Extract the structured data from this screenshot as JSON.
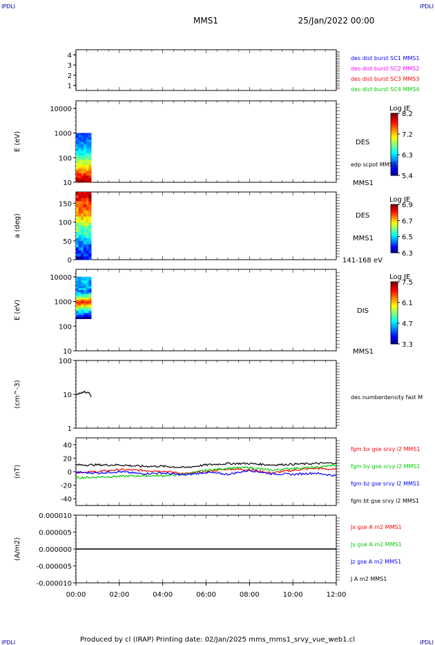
{
  "header": {
    "corner_labels": [
      "IPDLI",
      "IPDLI",
      "IPDLI",
      "IPDLI"
    ],
    "spacecraft": "MMS1",
    "date": "25/Jan/2022 00:00"
  },
  "footer": "Produced by cl (IRAP)   Printing date: 02/Jan/2025   mms_mms1_srvy_vue_web1.cl",
  "colors": {
    "blue": "#0000ff",
    "magenta": "#ff00ff",
    "red": "#ff0000",
    "green": "#00cc00",
    "black": "#000000"
  },
  "chart_data": [
    {
      "type": "heatmap",
      "panel": "burst availability",
      "yticks": [
        "4",
        "3",
        "2",
        "1"
      ],
      "ylim": [
        0.5,
        4.5
      ],
      "legend": [
        {
          "text": "des dist burst SC1 MMS1",
          "color": "#0000ff"
        },
        {
          "text": "des dist burst SC2 MMS2",
          "color": "#ff00ff"
        },
        {
          "text": "des dist burst SC3 MMS3",
          "color": "#ff0000"
        },
        {
          "text": "des dist burst SC4 MMS4",
          "color": "#00cc00"
        }
      ]
    },
    {
      "type": "heatmap",
      "panel": "DES energy spectrogram",
      "ylabel": "E (eV)",
      "yscale": "log",
      "ylim": [
        10,
        20000
      ],
      "yticks": [
        "10000",
        "1000",
        "100",
        "10"
      ],
      "ytick_values": [
        10000,
        1000,
        100,
        10
      ],
      "data_xrange": [
        0.0,
        0.7
      ],
      "data_yrange": [
        10,
        1000
      ],
      "right_labels": [
        "DES",
        "edp scpot MMS1",
        "MMS1"
      ],
      "colorbar": {
        "title": "Log JE",
        "ticks": [
          "8.2",
          "7.2",
          "6.3",
          "5.4"
        ]
      }
    },
    {
      "type": "heatmap",
      "panel": "DES pitch angle",
      "ylabel": "a (deg)",
      "ylim": [
        0,
        180
      ],
      "yticks": [
        "150",
        "100",
        "50",
        "0"
      ],
      "ytick_values": [
        150,
        100,
        50,
        0
      ],
      "data_xrange": [
        0.0,
        0.7
      ],
      "right_labels": [
        "DES",
        "MMS1",
        "141-168 eV"
      ],
      "colorbar": {
        "title": "Log JE",
        "ticks": [
          "6.9",
          "6.7",
          "6.5",
          "6.3"
        ]
      }
    },
    {
      "type": "heatmap",
      "panel": "DIS energy spectrogram",
      "ylabel": "E (eV)",
      "yscale": "log",
      "ylim": [
        10,
        20000
      ],
      "yticks": [
        "10000",
        "1000",
        "100",
        "10"
      ],
      "ytick_values": [
        10000,
        1000,
        100,
        10
      ],
      "data_xrange": [
        0.0,
        0.7
      ],
      "data_yrange": [
        200,
        10000
      ],
      "right_labels": [
        "DIS",
        "MMS1"
      ],
      "colorbar": {
        "title": "Log JE",
        "ticks": [
          "7.5",
          "6.1",
          "4.7",
          "3.3"
        ]
      }
    },
    {
      "type": "line",
      "panel": "density",
      "ylabel": "(cm^-3)",
      "yscale": "log",
      "ylim": [
        1,
        100
      ],
      "yticks": [
        "100",
        "10",
        "1"
      ],
      "ytick_values": [
        100,
        10,
        1
      ],
      "series": [
        {
          "name": "des numberdensity fast M",
          "color": "#000000",
          "x": [
            0.0,
            0.1,
            0.2,
            0.3,
            0.4,
            0.5,
            0.6,
            0.7
          ],
          "y": [
            9.5,
            10.5,
            10.8,
            11.2,
            12.0,
            11.0,
            11.8,
            8.2
          ]
        }
      ]
    },
    {
      "type": "line",
      "panel": "magnetic field",
      "ylabel": "(nT)",
      "ylim": [
        -50,
        50
      ],
      "yticks": [
        "40",
        "20",
        "0",
        "-20",
        "-40"
      ],
      "ytick_values": [
        40,
        20,
        0,
        -20,
        -40
      ],
      "series": [
        {
          "name": "fgm bx gse srvy l2 MMS1",
          "color": "#ff0000",
          "x": [
            0,
            1,
            2,
            3,
            4,
            5,
            6,
            7,
            8,
            9,
            10,
            11,
            12
          ],
          "y": [
            -1,
            0,
            3,
            2,
            1,
            -3,
            0,
            4,
            3,
            -2,
            2,
            5,
            3
          ]
        },
        {
          "name": "fgm by gse srvy l2 MMS1",
          "color": "#00cc00",
          "x": [
            0,
            1,
            2,
            3,
            4,
            5,
            6,
            7,
            8,
            9,
            10,
            11,
            12
          ],
          "y": [
            -9,
            -8,
            -7,
            -6,
            -6,
            -4,
            2,
            5,
            6,
            2,
            5,
            6,
            10
          ]
        },
        {
          "name": "fgm bz gse srvy l2 MMS1",
          "color": "#0000ff",
          "x": [
            0,
            1,
            2,
            3,
            4,
            5,
            6,
            7,
            8,
            9,
            10,
            11,
            12
          ],
          "y": [
            -1,
            -2,
            0,
            -3,
            -2,
            -5,
            -1,
            -4,
            2,
            -3,
            -4,
            -2,
            -6
          ]
        },
        {
          "name": "fgm bt gse srvy l2 MMS1",
          "color": "#000000",
          "x": [
            0,
            1,
            2,
            3,
            4,
            5,
            6,
            7,
            8,
            9,
            10,
            11,
            12
          ],
          "y": [
            10,
            10,
            10,
            8,
            8,
            6,
            10,
            12,
            12,
            10,
            11,
            12,
            13
          ]
        }
      ]
    },
    {
      "type": "line",
      "panel": "current density",
      "ylabel": "(A/m2)",
      "ylim": [
        -1e-05,
        1e-05
      ],
      "yticks": [
        "0.000010",
        "0.000005",
        "0.000000",
        "-0.000005",
        "-0.000010"
      ],
      "ytick_values": [
        1e-05,
        5e-06,
        0,
        -5e-06,
        -1e-05
      ],
      "xticks": [
        "00:00",
        "02:00",
        "04:00",
        "06:00",
        "08:00",
        "10:00",
        "12:00"
      ],
      "xlim": [
        0,
        12
      ],
      "series": [
        {
          "name": "Jx gse A m2 MMS1",
          "color": "#ff0000",
          "x": [
            0,
            12
          ],
          "y": [
            0,
            0
          ]
        },
        {
          "name": "Jy gse A m2 MMS1",
          "color": "#00cc00",
          "x": [
            0,
            12
          ],
          "y": [
            0,
            0
          ]
        },
        {
          "name": "Jz gse A m2 MMS1",
          "color": "#0000ff",
          "x": [
            0,
            12
          ],
          "y": [
            0,
            0
          ]
        },
        {
          "name": "J A m2 MMS1",
          "color": "#000000",
          "x": [
            0,
            12
          ],
          "y": [
            0,
            0
          ]
        }
      ]
    }
  ]
}
